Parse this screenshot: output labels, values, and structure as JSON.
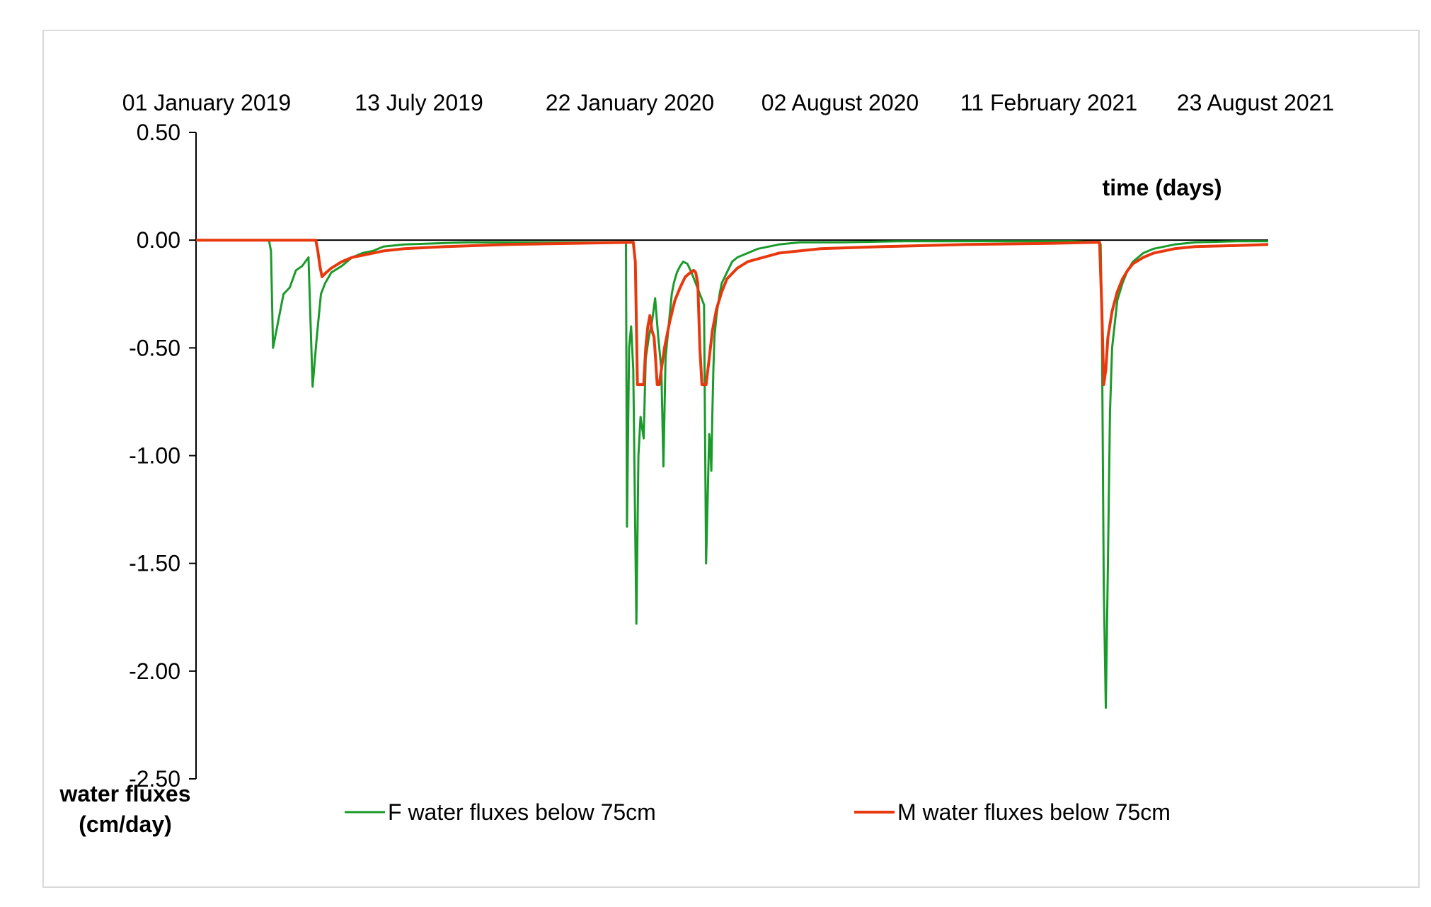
{
  "chart_data": {
    "type": "line",
    "title": "",
    "xlabel": "time (days)",
    "ylabel": "water fluxes (cm/day)",
    "ylabel_lines": [
      "water fluxes",
      "(cm/day)"
    ],
    "x_unit": "days since 01 January 2019",
    "xlim": [
      0,
      1030
    ],
    "ylim": [
      -2.5,
      0.5
    ],
    "yticks": [
      0.5,
      0,
      -0.5,
      -1.0,
      -1.5,
      -2.0,
      -2.5
    ],
    "ytick_labels": [
      "0.50",
      "0.00",
      "-0.50",
      "-1.00",
      "-1.50",
      "-2.00",
      "-2.50"
    ],
    "xtick_labels": [
      {
        "day": 0,
        "label": "01 January 2019"
      },
      {
        "day": 193,
        "label": "13 July 2019"
      },
      {
        "day": 386,
        "label": "22 January 2020"
      },
      {
        "day": 579,
        "label": "02 August 2020"
      },
      {
        "day": 772,
        "label": "11 February 2021"
      },
      {
        "day": 965,
        "label": "23 August 2021"
      }
    ],
    "grid": false,
    "legend_position": "bottom",
    "series": [
      {
        "name": "F water fluxes below 75cm",
        "color": "#1a9a2a",
        "x": [
          0,
          70,
          72,
          74,
          78,
          84,
          90,
          96,
          102,
          105,
          108,
          112,
          116,
          120,
          124,
          130,
          140,
          150,
          160,
          170,
          180,
          200,
          230,
          260,
          300,
          340,
          400,
          413,
          414,
          416,
          418,
          420,
          423,
          425,
          427,
          430,
          432,
          435,
          438,
          441,
          444,
          447,
          449,
          451,
          452,
          453,
          455,
          457,
          459,
          462,
          465,
          468,
          472,
          476,
          480,
          484,
          488,
          490,
          493,
          494,
          495,
          496,
          497,
          498,
          500,
          503,
          505,
          510,
          515,
          520,
          530,
          540,
          560,
          580,
          620,
          680,
          760,
          840,
          868,
          869,
          870,
          871,
          872,
          874,
          876,
          878,
          880,
          885,
          890,
          895,
          900,
          910,
          920,
          940,
          960,
          1000,
          1030
        ],
        "values": [
          0,
          0,
          -0.05,
          -0.5,
          -0.4,
          -0.25,
          -0.22,
          -0.14,
          -0.12,
          -0.1,
          -0.08,
          -0.68,
          -0.45,
          -0.25,
          -0.2,
          -0.15,
          -0.12,
          -0.08,
          -0.06,
          -0.05,
          -0.03,
          -0.02,
          -0.015,
          -0.01,
          -0.01,
          -0.01,
          -0.01,
          -0.01,
          -1.33,
          -0.5,
          -0.4,
          -0.6,
          -1.78,
          -1.0,
          -0.82,
          -0.92,
          -0.55,
          -0.45,
          -0.38,
          -0.27,
          -0.45,
          -0.6,
          -1.05,
          -0.55,
          -0.5,
          -0.45,
          -0.35,
          -0.25,
          -0.2,
          -0.15,
          -0.12,
          -0.1,
          -0.11,
          -0.15,
          -0.2,
          -0.25,
          -0.3,
          -1.5,
          -0.9,
          -0.95,
          -1.07,
          -0.8,
          -0.6,
          -0.45,
          -0.35,
          -0.25,
          -0.2,
          -0.15,
          -0.1,
          -0.08,
          -0.06,
          -0.04,
          -0.02,
          -0.01,
          -0.01,
          -0.005,
          -0.005,
          -0.005,
          -0.01,
          -0.02,
          -0.3,
          -0.9,
          -1.6,
          -2.17,
          -1.5,
          -0.8,
          -0.5,
          -0.28,
          -0.2,
          -0.14,
          -0.1,
          -0.06,
          -0.04,
          -0.02,
          -0.01,
          -0.005,
          -0.005
        ]
      },
      {
        "name": "M water fluxes below 75cm",
        "color": "#e8380d",
        "x": [
          0,
          115,
          117,
          119,
          121,
          125,
          130,
          140,
          150,
          160,
          180,
          200,
          240,
          300,
          360,
          420,
          422,
          424,
          426,
          430,
          432,
          434,
          436,
          438,
          440,
          441,
          443,
          445,
          447,
          450,
          455,
          460,
          465,
          470,
          475,
          478,
          480,
          482,
          484,
          486,
          487,
          488,
          490,
          493,
          496,
          500,
          505,
          510,
          520,
          530,
          545,
          560,
          600,
          660,
          740,
          820,
          865,
          868,
          870,
          872,
          874,
          876,
          880,
          885,
          890,
          895,
          900,
          910,
          920,
          940,
          960,
          1000,
          1030
        ],
        "values": [
          0,
          0,
          -0.05,
          -0.12,
          -0.17,
          -0.15,
          -0.13,
          -0.1,
          -0.08,
          -0.07,
          -0.05,
          -0.04,
          -0.03,
          -0.02,
          -0.015,
          -0.01,
          -0.1,
          -0.67,
          -0.67,
          -0.67,
          -0.5,
          -0.4,
          -0.35,
          -0.42,
          -0.45,
          -0.52,
          -0.67,
          -0.67,
          -0.6,
          -0.5,
          -0.38,
          -0.28,
          -0.22,
          -0.17,
          -0.15,
          -0.14,
          -0.15,
          -0.2,
          -0.5,
          -0.67,
          -0.67,
          -0.67,
          -0.67,
          -0.55,
          -0.42,
          -0.32,
          -0.24,
          -0.18,
          -0.13,
          -0.1,
          -0.08,
          -0.06,
          -0.04,
          -0.03,
          -0.02,
          -0.015,
          -0.01,
          -0.01,
          -0.3,
          -0.67,
          -0.6,
          -0.45,
          -0.33,
          -0.24,
          -0.18,
          -0.14,
          -0.11,
          -0.08,
          -0.06,
          -0.04,
          -0.03,
          -0.025,
          -0.02
        ]
      }
    ]
  }
}
